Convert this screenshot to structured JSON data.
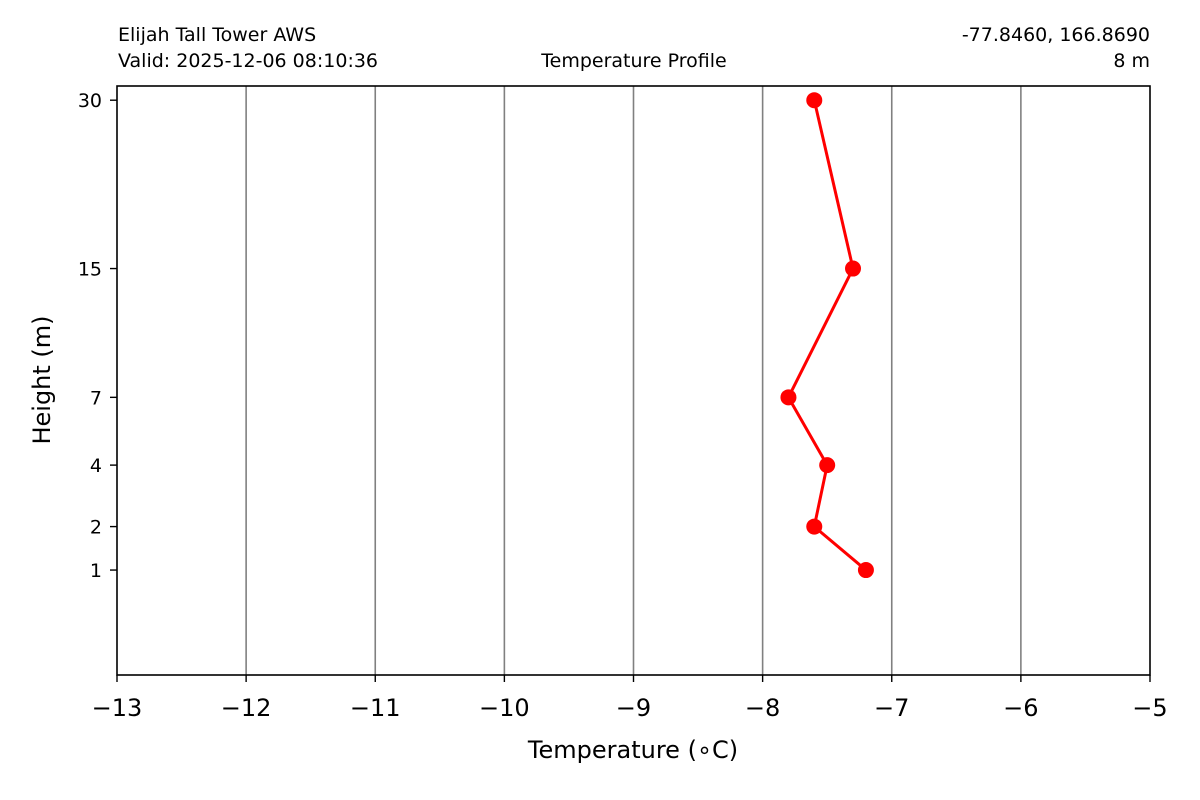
{
  "header": {
    "station": "Elijah Tall Tower AWS",
    "valid": "Valid: 2025-12-06 08:10:36",
    "title": "Temperature Profile",
    "coords": "-77.8460, 166.8690",
    "elevation": "8 m"
  },
  "chart_data": {
    "type": "line",
    "title": "Temperature Profile",
    "xlabel": "Temperature (∘C)",
    "ylabel": "Height (m)",
    "xlim": [
      -13,
      -5
    ],
    "ylim": [
      0,
      31.5
    ],
    "x_ticks": [
      -13,
      -12,
      -11,
      -10,
      -9,
      -8,
      -7,
      -6,
      -5
    ],
    "x_tick_labels": [
      "−13",
      "−12",
      "−11",
      "−10",
      "−9",
      "−8",
      "−7",
      "−6",
      "−5"
    ],
    "y_ticks": [
      1,
      2,
      4,
      7,
      15,
      30
    ],
    "y_tick_labels": [
      "1",
      "2",
      "4",
      "7",
      "15",
      "30"
    ],
    "y_scale": "square-root",
    "grid": "vertical lines at x ticks",
    "legend": "none",
    "series": [
      {
        "color": "#ff0000",
        "points": [
          {
            "height": 1,
            "temperature": -7.2
          },
          {
            "height": 2,
            "temperature": -7.6
          },
          {
            "height": 4,
            "temperature": -7.5
          },
          {
            "height": 7,
            "temperature": -7.8
          },
          {
            "height": 15,
            "temperature": -7.3
          },
          {
            "height": 30,
            "temperature": -7.6
          }
        ]
      }
    ]
  }
}
